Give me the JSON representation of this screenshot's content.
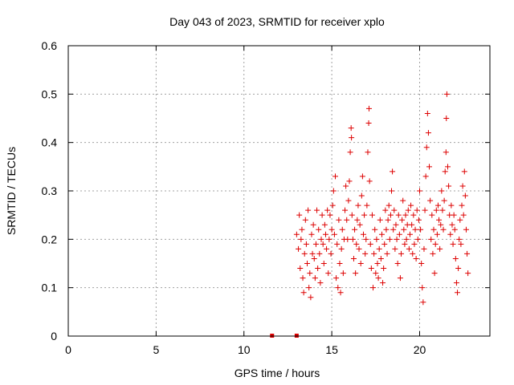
{
  "chart_data": {
    "type": "scatter",
    "title": "Day 043 of 2023, SRMTID for receiver xplo",
    "xlabel": "GPS time / hours",
    "ylabel": "SRMTID / TECUs",
    "xlim": [
      0,
      24
    ],
    "ylim": [
      0,
      0.6
    ],
    "x_ticks": [
      0,
      5,
      10,
      15,
      20
    ],
    "x_tick_labels": [
      "0",
      "5",
      "10",
      "15",
      "20"
    ],
    "y_ticks": [
      0,
      0.1,
      0.2,
      0.3,
      0.4,
      0.5,
      0.6
    ],
    "y_tick_labels": [
      "0",
      "0.1",
      "0.2",
      "0.3",
      "0.4",
      "0.5",
      "0.6"
    ],
    "grid": true,
    "marker": "+",
    "colors": {
      "points": "#dd0000",
      "grid": "#a0a0a0",
      "axes": "#000000"
    },
    "zero_markers": [
      {
        "x": 11.6,
        "y": 0
      },
      {
        "x": 13.0,
        "y": 0
      }
    ],
    "series": [
      {
        "name": "SRMTID",
        "points": [
          [
            13.0,
            0.21
          ],
          [
            13.1,
            0.18
          ],
          [
            13.15,
            0.25
          ],
          [
            13.2,
            0.14
          ],
          [
            13.25,
            0.2
          ],
          [
            13.3,
            0.22
          ],
          [
            13.35,
            0.12
          ],
          [
            13.4,
            0.09
          ],
          [
            13.45,
            0.17
          ],
          [
            13.5,
            0.24
          ],
          [
            13.55,
            0.19
          ],
          [
            13.6,
            0.15
          ],
          [
            13.65,
            0.26
          ],
          [
            13.7,
            0.1
          ],
          [
            13.75,
            0.13
          ],
          [
            13.8,
            0.08
          ],
          [
            13.85,
            0.21
          ],
          [
            13.9,
            0.17
          ],
          [
            13.95,
            0.23
          ],
          [
            14.0,
            0.16
          ],
          [
            14.05,
            0.12
          ],
          [
            14.1,
            0.19
          ],
          [
            14.15,
            0.26
          ],
          [
            14.2,
            0.14
          ],
          [
            14.25,
            0.22
          ],
          [
            14.3,
            0.17
          ],
          [
            14.35,
            0.11
          ],
          [
            14.4,
            0.2
          ],
          [
            14.45,
            0.25
          ],
          [
            14.5,
            0.19
          ],
          [
            14.55,
            0.15
          ],
          [
            14.6,
            0.23
          ],
          [
            14.65,
            0.21
          ],
          [
            14.7,
            0.18
          ],
          [
            14.75,
            0.26
          ],
          [
            14.8,
            0.13
          ],
          [
            14.85,
            0.2
          ],
          [
            14.9,
            0.25
          ],
          [
            14.95,
            0.17
          ],
          [
            15.0,
            0.22
          ],
          [
            15.05,
            0.27
          ],
          [
            15.1,
            0.3
          ],
          [
            15.15,
            0.21
          ],
          [
            15.2,
            0.33
          ],
          [
            15.25,
            0.12
          ],
          [
            15.3,
            0.19
          ],
          [
            15.35,
            0.1
          ],
          [
            15.4,
            0.24
          ],
          [
            15.45,
            0.15
          ],
          [
            15.5,
            0.09
          ],
          [
            15.55,
            0.18
          ],
          [
            15.6,
            0.22
          ],
          [
            15.65,
            0.13
          ],
          [
            15.7,
            0.2
          ],
          [
            15.75,
            0.26
          ],
          [
            15.8,
            0.31
          ],
          [
            15.85,
            0.24
          ],
          [
            15.9,
            0.2
          ],
          [
            15.95,
            0.28
          ],
          [
            16.0,
            0.32
          ],
          [
            16.05,
            0.38
          ],
          [
            16.1,
            0.43
          ],
          [
            16.12,
            0.41
          ],
          [
            16.15,
            0.25
          ],
          [
            16.2,
            0.2
          ],
          [
            16.25,
            0.16
          ],
          [
            16.3,
            0.22
          ],
          [
            16.35,
            0.13
          ],
          [
            16.4,
            0.19
          ],
          [
            16.45,
            0.24
          ],
          [
            16.5,
            0.27
          ],
          [
            16.55,
            0.18
          ],
          [
            16.6,
            0.23
          ],
          [
            16.65,
            0.15
          ],
          [
            16.7,
            0.29
          ],
          [
            16.75,
            0.33
          ],
          [
            16.8,
            0.21
          ],
          [
            16.85,
            0.25
          ],
          [
            16.9,
            0.17
          ],
          [
            16.95,
            0.2
          ],
          [
            17.0,
            0.27
          ],
          [
            17.05,
            0.38
          ],
          [
            17.1,
            0.44
          ],
          [
            17.12,
            0.47
          ],
          [
            17.15,
            0.32
          ],
          [
            17.2,
            0.19
          ],
          [
            17.25,
            0.14
          ],
          [
            17.3,
            0.25
          ],
          [
            17.35,
            0.1
          ],
          [
            17.4,
            0.17
          ],
          [
            17.45,
            0.22
          ],
          [
            17.5,
            0.13
          ],
          [
            17.55,
            0.2
          ],
          [
            17.6,
            0.15
          ],
          [
            17.65,
            0.12
          ],
          [
            17.7,
            0.18
          ],
          [
            17.75,
            0.24
          ],
          [
            17.8,
            0.16
          ],
          [
            17.85,
            0.21
          ],
          [
            17.9,
            0.11
          ],
          [
            17.95,
            0.14
          ],
          [
            18.0,
            0.19
          ],
          [
            18.05,
            0.26
          ],
          [
            18.1,
            0.22
          ],
          [
            18.15,
            0.17
          ],
          [
            18.2,
            0.24
          ],
          [
            18.25,
            0.27
          ],
          [
            18.3,
            0.2
          ],
          [
            18.35,
            0.25
          ],
          [
            18.4,
            0.3
          ],
          [
            18.45,
            0.34
          ],
          [
            18.5,
            0.22
          ],
          [
            18.55,
            0.26
          ],
          [
            18.6,
            0.18
          ],
          [
            18.65,
            0.23
          ],
          [
            18.7,
            0.2
          ],
          [
            18.75,
            0.15
          ],
          [
            18.8,
            0.25
          ],
          [
            18.85,
            0.21
          ],
          [
            18.9,
            0.12
          ],
          [
            18.95,
            0.17
          ],
          [
            19.0,
            0.24
          ],
          [
            19.05,
            0.28
          ],
          [
            19.1,
            0.22
          ],
          [
            19.15,
            0.19
          ],
          [
            19.2,
            0.25
          ],
          [
            19.25,
            0.2
          ],
          [
            19.3,
            0.23
          ],
          [
            19.35,
            0.26
          ],
          [
            19.4,
            0.18
          ],
          [
            19.45,
            0.21
          ],
          [
            19.5,
            0.27
          ],
          [
            19.55,
            0.23
          ],
          [
            19.6,
            0.17
          ],
          [
            19.65,
            0.25
          ],
          [
            19.7,
            0.19
          ],
          [
            19.75,
            0.22
          ],
          [
            19.8,
            0.16
          ],
          [
            19.85,
            0.26
          ],
          [
            19.9,
            0.2
          ],
          [
            19.95,
            0.24
          ],
          [
            20.0,
            0.3
          ],
          [
            20.05,
            0.22
          ],
          [
            20.1,
            0.15
          ],
          [
            20.15,
            0.1
          ],
          [
            20.2,
            0.07
          ],
          [
            20.25,
            0.18
          ],
          [
            20.3,
            0.26
          ],
          [
            20.35,
            0.33
          ],
          [
            20.4,
            0.39
          ],
          [
            20.45,
            0.46
          ],
          [
            20.5,
            0.42
          ],
          [
            20.55,
            0.35
          ],
          [
            20.6,
            0.28
          ],
          [
            20.65,
            0.2
          ],
          [
            20.7,
            0.25
          ],
          [
            20.75,
            0.17
          ],
          [
            20.8,
            0.22
          ],
          [
            20.85,
            0.13
          ],
          [
            20.9,
            0.19
          ],
          [
            20.95,
            0.26
          ],
          [
            21.0,
            0.21
          ],
          [
            21.05,
            0.27
          ],
          [
            21.1,
            0.24
          ],
          [
            21.15,
            0.18
          ],
          [
            21.2,
            0.23
          ],
          [
            21.25,
            0.3
          ],
          [
            21.3,
            0.26
          ],
          [
            21.35,
            0.22
          ],
          [
            21.4,
            0.28
          ],
          [
            21.45,
            0.34
          ],
          [
            21.5,
            0.38
          ],
          [
            21.52,
            0.45
          ],
          [
            21.55,
            0.5
          ],
          [
            21.6,
            0.35
          ],
          [
            21.65,
            0.31
          ],
          [
            21.7,
            0.25
          ],
          [
            21.75,
            0.21
          ],
          [
            21.8,
            0.27
          ],
          [
            21.85,
            0.23
          ],
          [
            21.9,
            0.19
          ],
          [
            21.95,
            0.25
          ],
          [
            22.0,
            0.22
          ],
          [
            22.05,
            0.16
          ],
          [
            22.1,
            0.11
          ],
          [
            22.15,
            0.09
          ],
          [
            22.2,
            0.14
          ],
          [
            22.25,
            0.2
          ],
          [
            22.3,
            0.24
          ],
          [
            22.35,
            0.19
          ],
          [
            22.4,
            0.27
          ],
          [
            22.45,
            0.31
          ],
          [
            22.5,
            0.25
          ],
          [
            22.55,
            0.34
          ],
          [
            22.6,
            0.29
          ],
          [
            22.65,
            0.22
          ],
          [
            22.7,
            0.17
          ],
          [
            22.75,
            0.13
          ]
        ]
      }
    ]
  }
}
